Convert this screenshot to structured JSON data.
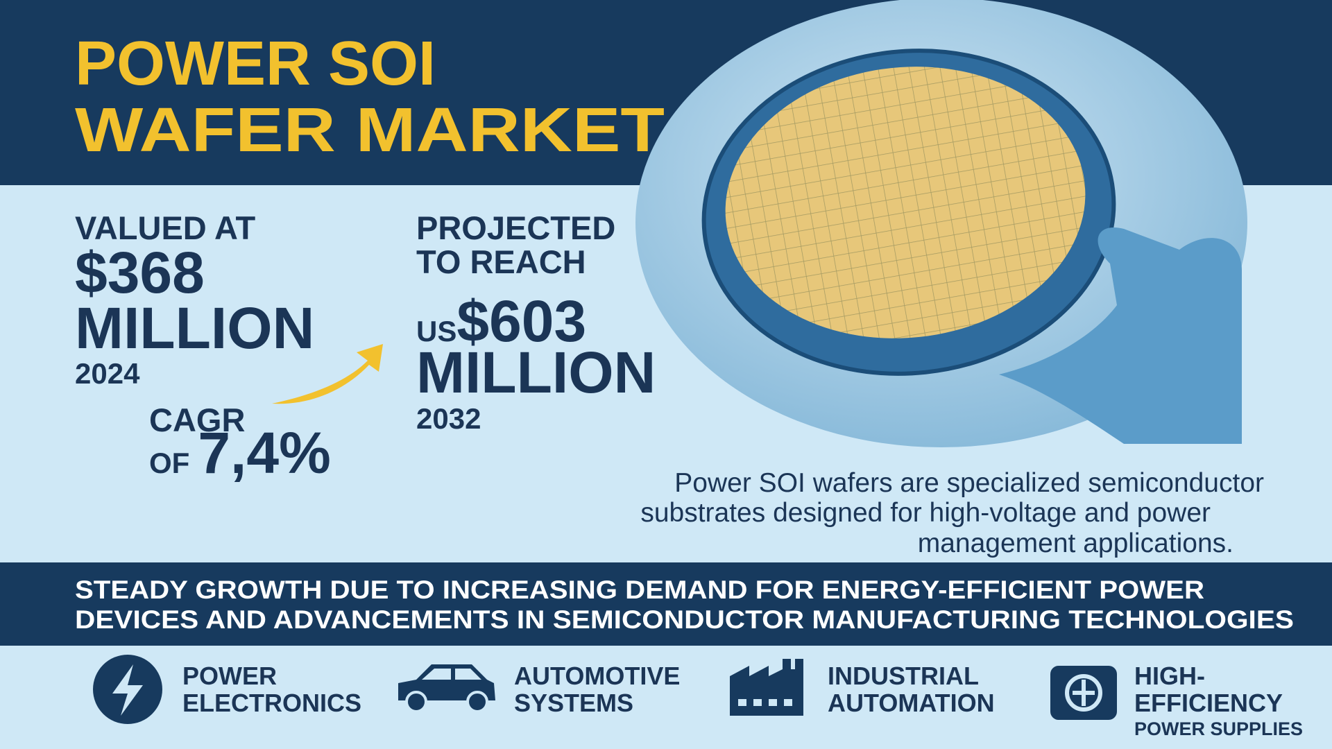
{
  "header": {
    "title_lines": [
      "POWER SOI",
      "WAFER MARKET"
    ]
  },
  "current": {
    "label": "VALUED AT",
    "amount": "$368",
    "unit": "MILLION",
    "year": "2024"
  },
  "growth": {
    "label": "CAGR",
    "prefix": "OF",
    "rate": "7,4%"
  },
  "projection": {
    "label_lines": [
      "PROJECTED",
      "TO REACH"
    ],
    "currency": "US",
    "amount": "$603",
    "unit": "MILLION",
    "year": "2032"
  },
  "description_lines": [
    "Power SOI wafers are specialized semiconductor",
    "substrates designed for high-voltage and power",
    "management applications."
  ],
  "banner_lines": [
    "STEADY GROWTH DUE TO INCREASING DEMAND FOR ENERGY-EFFICIENT POWER",
    "DEVICES AND ADVANCEMENTS IN SEMICONDUCTOR MANUFACTURING TECHNOLOGIES"
  ],
  "segments": [
    {
      "lines": [
        "POWER",
        "ELECTRONICS"
      ]
    },
    {
      "lines": [
        "AUTOMOTIVE",
        "SYSTEMS"
      ]
    },
    {
      "lines": [
        "INDUSTRIAL",
        "AUTOMATION"
      ]
    },
    {
      "lines": [
        "HIGH-",
        "EFFICIENCY"
      ],
      "note": "POWER SUPPLIES"
    }
  ]
}
